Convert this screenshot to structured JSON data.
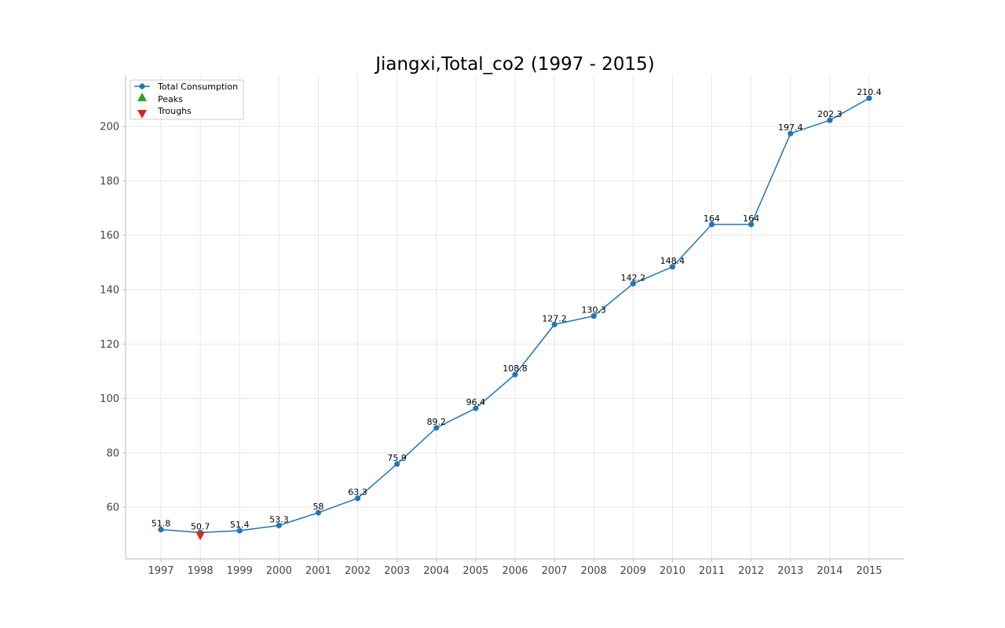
{
  "chart_data": {
    "type": "line",
    "title": "Jiangxi,Total_co2 (1997 - 2015)",
    "xlabel": "",
    "ylabel": "",
    "x": [
      "1997",
      "1998",
      "1999",
      "2000",
      "2001",
      "2002",
      "2003",
      "2004",
      "2005",
      "2006",
      "2007",
      "2008",
      "2009",
      "2010",
      "2011",
      "2012",
      "2013",
      "2014",
      "2015"
    ],
    "series": [
      {
        "name": "Total Consumption",
        "color": "#1f77b4",
        "marker": "circle",
        "values": [
          51.8,
          50.7,
          51.4,
          53.3,
          58,
          63.3,
          75.9,
          89.2,
          96.4,
          108.8,
          127.2,
          130.3,
          142.2,
          148.4,
          164,
          164,
          197.4,
          202.3,
          210.4
        ]
      }
    ],
    "data_labels": [
      "51.8",
      "50.7",
      "51.4",
      "53.3",
      "58",
      "63.3",
      "75.9",
      "89.2",
      "96.4",
      "108.8",
      "127.2",
      "130.3",
      "142.2",
      "148.4",
      "164",
      "164",
      "197.4",
      "202.3",
      "210.4"
    ],
    "peaks": {
      "label": "Peaks",
      "color": "#2ca02c",
      "marker": "triangle-up",
      "points": []
    },
    "troughs": {
      "label": "Troughs",
      "color": "#d62728",
      "marker": "triangle-down",
      "points": [
        {
          "x": "1998",
          "y": 50.7
        }
      ]
    },
    "ylim": [
      41.0,
      218.8
    ],
    "yticks": [
      60,
      80,
      100,
      120,
      140,
      160,
      180,
      200
    ],
    "grid": true,
    "legend_position": "top-left"
  }
}
